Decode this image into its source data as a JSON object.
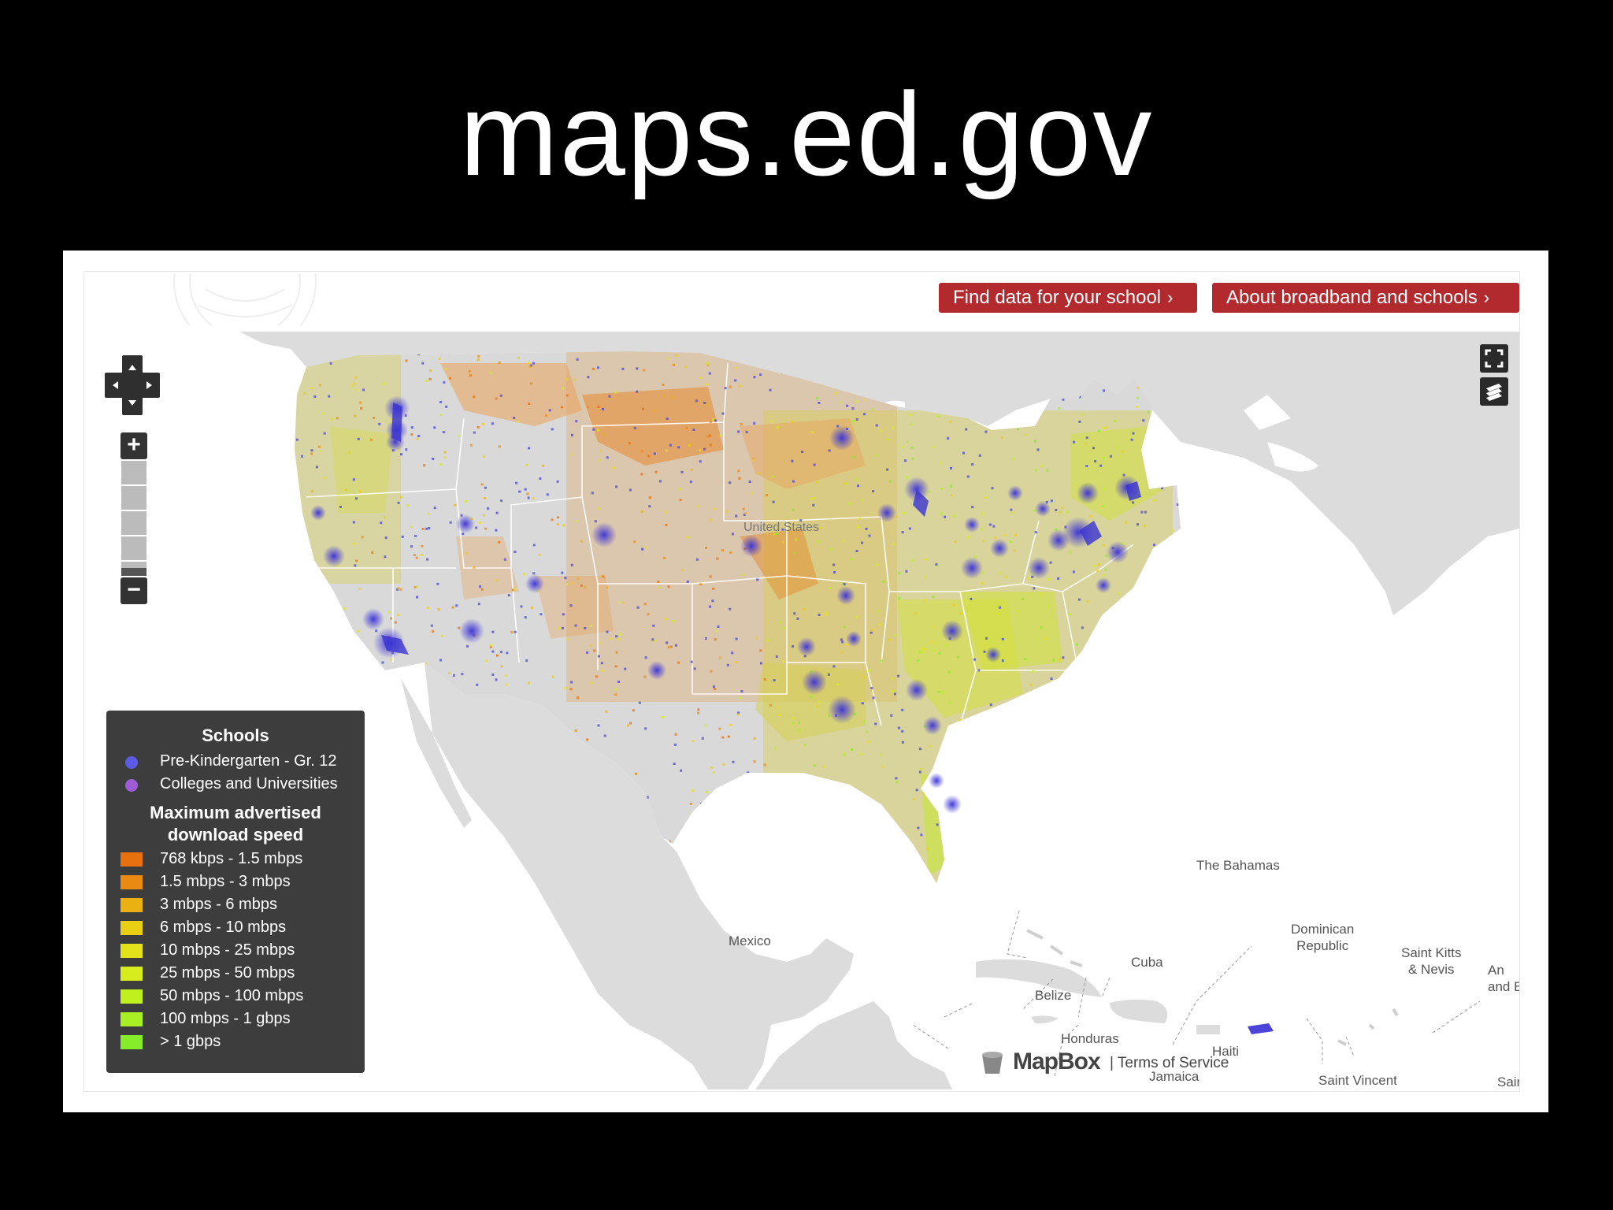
{
  "slide": {
    "title": "maps.ed.gov"
  },
  "header": {
    "find_label": "Find data for your school",
    "about_label": "About broadband and schools",
    "chevron": "›",
    "button_color": "#b22a2e"
  },
  "controls": {
    "zoom_in": "+",
    "zoom_out": "−",
    "icons": [
      "pan-control-icon",
      "fullscreen-icon",
      "layers-icon"
    ]
  },
  "legend": {
    "schools_title": "Schools",
    "schools": [
      {
        "label": "Pre-Kindergarten - Gr. 12",
        "color": "#5b5be3"
      },
      {
        "label": "Colleges and Universities",
        "color": "#9d5cd6"
      }
    ],
    "speed_title_1": "Maximum advertised",
    "speed_title_2": "download speed",
    "speeds": [
      {
        "label": "768 kbps - 1.5 mbps",
        "color": "#e8700f"
      },
      {
        "label": "1.5 mbps - 3 mbps",
        "color": "#ea8a12"
      },
      {
        "label": "3 mbps - 6 mbps",
        "color": "#ebb012"
      },
      {
        "label": "6 mbps - 10 mbps",
        "color": "#e9cf14"
      },
      {
        "label": "10 mbps - 25 mbps",
        "color": "#e4e21a"
      },
      {
        "label": "25 mbps - 50 mbps",
        "color": "#d6ec1c"
      },
      {
        "label": "50 mbps - 100 mbps",
        "color": "#c0f01e"
      },
      {
        "label": "100 mbps - 1 gbps",
        "color": "#a8f024"
      },
      {
        "label": "> 1 gbps",
        "color": "#86ec2a"
      }
    ]
  },
  "map_labels": {
    "us": "United States",
    "mexico": "Mexico",
    "bahamas": "The Bahamas",
    "dominican_1": "Dominican",
    "dominican_2": "Republic",
    "cuba": "Cuba",
    "belize": "Belize",
    "honduras": "Honduras",
    "jamaica": "Jamaica",
    "haiti": "Haiti",
    "stkitts_1": "Saint Kitts",
    "stkitts_2": "& Nevis",
    "antigua_1": "An",
    "antigua_2": "and B",
    "stvincent": "Saint Vincent",
    "sain": "Sain"
  },
  "attribution": {
    "brand": "MapBox",
    "terms": "| Terms of Service"
  },
  "colors": {
    "land": "#dcdcdc",
    "water": "#ffffff",
    "pk12": "#4a45d8",
    "college": "#8a3fd0"
  }
}
